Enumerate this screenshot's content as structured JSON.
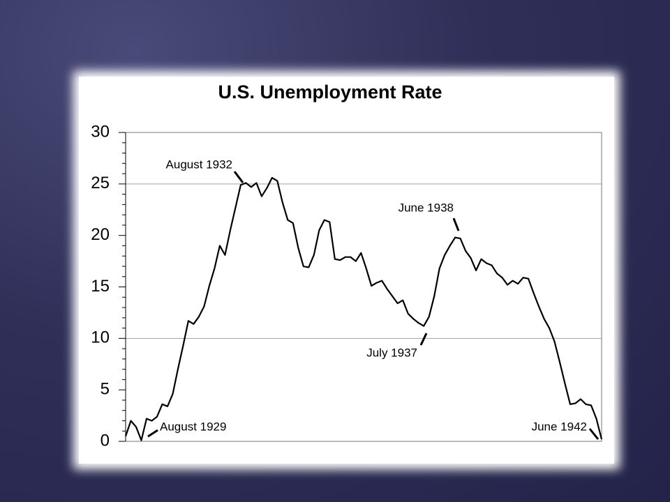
{
  "chart_data": {
    "type": "line",
    "title": "U.S. Unemployment Rate",
    "categories": [
      null,
      null,
      null,
      null,
      null,
      null,
      null,
      null,
      null,
      null,
      null,
      null,
      null,
      null,
      null,
      null,
      null,
      null,
      null,
      null,
      null,
      null,
      null,
      null,
      null,
      null,
      null,
      null,
      null,
      null,
      null,
      null,
      null,
      null,
      null,
      null,
      null,
      null,
      null,
      null,
      null,
      null,
      null,
      null,
      null,
      null,
      null,
      null,
      null,
      null,
      null,
      null,
      null,
      null,
      null,
      null,
      null,
      null,
      null,
      null,
      null,
      null,
      null,
      null,
      null,
      null,
      null,
      null,
      null,
      null,
      null,
      null,
      null,
      null,
      null,
      null,
      null,
      null,
      null,
      null,
      null,
      null,
      null,
      null,
      null,
      null,
      null,
      null,
      null,
      null,
      null,
      null
    ],
    "values": [
      0.5,
      2.0,
      1.4,
      0.1,
      2.2,
      2.0,
      2.4,
      3.6,
      3.4,
      4.6,
      7.0,
      9.3,
      11.7,
      11.4,
      12.1,
      13.1,
      15.1,
      16.8,
      19.0,
      18.1,
      20.5,
      22.7,
      24.9,
      25.1,
      24.7,
      25.1,
      23.8,
      24.6,
      25.6,
      25.3,
      23.2,
      21.5,
      21.2,
      18.8,
      17.0,
      16.9,
      18.1,
      20.5,
      21.5,
      21.3,
      17.7,
      17.6,
      17.9,
      17.9,
      17.5,
      18.3,
      16.8,
      15.1,
      15.4,
      15.6,
      14.8,
      14.1,
      13.4,
      13.7,
      12.4,
      11.9,
      11.5,
      11.2,
      12.1,
      14.1,
      16.8,
      18.1,
      19.0,
      19.8,
      19.7,
      18.5,
      17.8,
      16.6,
      17.7,
      17.3,
      17.1,
      16.3,
      15.9,
      15.2,
      15.6,
      15.3,
      15.9,
      15.8,
      14.4,
      13.1,
      11.9,
      11.0,
      9.7,
      7.7,
      5.6,
      3.6,
      3.7,
      4.1,
      3.6,
      3.5,
      2.2,
      0.2
    ],
    "color": "#000000",
    "ylim": [
      0,
      30
    ],
    "yticks": [
      0,
      5,
      10,
      15,
      20,
      25,
      30
    ],
    "grid_lines": [
      10,
      25
    ],
    "annotations": [
      "August 1929",
      "August 1932",
      "July 1937",
      "June 1938",
      "June 1942"
    ]
  }
}
